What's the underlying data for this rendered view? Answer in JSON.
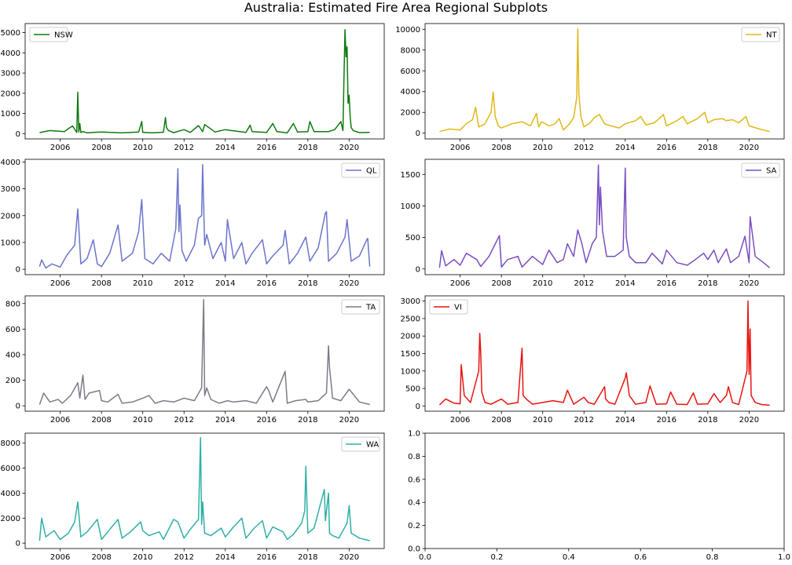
{
  "title": "Australia: Estimated Fire Area Regional Subplots",
  "chart_data": [
    {
      "type": "line",
      "name": "NSW",
      "legend": "NSW",
      "legend_loc": "upper left",
      "color": "#0f7a0f",
      "xlim": [
        2004.3,
        2021.7
      ],
      "ylim": [
        -260,
        5450
      ],
      "yticks": [
        0,
        1000,
        2000,
        3000,
        4000,
        5000
      ],
      "xticks": [
        2006,
        2008,
        2010,
        2012,
        2014,
        2016,
        2018,
        2020
      ],
      "x": [
        2005.0,
        2005.5,
        2006.2,
        2006.4,
        2006.6,
        2006.8,
        2006.85,
        2006.9,
        2006.95,
        2007.0,
        2007.1,
        2007.3,
        2008.0,
        2009.0,
        2009.8,
        2009.95,
        2010.0,
        2010.5,
        2011.0,
        2011.1,
        2011.15,
        2011.25,
        2011.5,
        2012.0,
        2012.3,
        2012.7,
        2012.9,
        2013.0,
        2013.5,
        2014.0,
        2014.3,
        2015.0,
        2015.2,
        2015.3,
        2016.0,
        2016.3,
        2016.5,
        2017.0,
        2017.3,
        2017.5,
        2018.0,
        2018.1,
        2018.3,
        2019.0,
        2019.3,
        2019.6,
        2019.7,
        2019.75,
        2019.8,
        2019.85,
        2019.9,
        2019.95,
        2020.0,
        2020.05,
        2020.1,
        2020.2,
        2020.5,
        2021.0
      ],
      "y": [
        50,
        150,
        100,
        250,
        380,
        60,
        2050,
        80,
        500,
        60,
        100,
        40,
        80,
        40,
        80,
        600,
        60,
        40,
        70,
        800,
        300,
        150,
        50,
        200,
        60,
        400,
        100,
        450,
        80,
        200,
        150,
        60,
        420,
        100,
        60,
        500,
        100,
        40,
        500,
        80,
        100,
        600,
        100,
        100,
        200,
        600,
        150,
        2800,
        5150,
        3800,
        4300,
        1500,
        1900,
        800,
        300,
        150,
        50,
        60
      ]
    },
    {
      "type": "line",
      "name": "NT",
      "legend": "NT",
      "legend_loc": "upper right",
      "color": "#e0b818",
      "xlim": [
        2004.3,
        2021.7
      ],
      "ylim": [
        -550,
        10550
      ],
      "yticks": [
        0,
        2000,
        4000,
        6000,
        8000,
        10000
      ],
      "xticks": [
        2006,
        2008,
        2010,
        2012,
        2014,
        2016,
        2018,
        2020
      ],
      "x": [
        2005.0,
        2005.5,
        2006.0,
        2006.3,
        2006.6,
        2006.75,
        2006.9,
        2007.2,
        2007.5,
        2007.6,
        2007.7,
        2007.85,
        2008.0,
        2008.5,
        2009.0,
        2009.4,
        2009.7,
        2009.8,
        2009.95,
        2010.3,
        2010.6,
        2010.8,
        2011.0,
        2011.3,
        2011.5,
        2011.65,
        2011.7,
        2011.75,
        2011.85,
        2012.0,
        2012.3,
        2012.5,
        2012.75,
        2013.0,
        2013.3,
        2013.7,
        2014.0,
        2014.5,
        2014.75,
        2015.0,
        2015.4,
        2015.7,
        2015.85,
        2016.0,
        2016.5,
        2016.8,
        2017.0,
        2017.5,
        2017.85,
        2018.0,
        2018.3,
        2018.7,
        2018.9,
        2019.2,
        2019.5,
        2019.85,
        2020.0,
        2020.5,
        2021.0
      ],
      "y": [
        150,
        400,
        300,
        900,
        1300,
        2500,
        600,
        900,
        2000,
        3950,
        1600,
        700,
        500,
        900,
        1100,
        700,
        1900,
        600,
        1100,
        700,
        900,
        1400,
        300,
        900,
        1500,
        3400,
        10050,
        3800,
        1600,
        600,
        1000,
        1500,
        1800,
        900,
        700,
        500,
        900,
        1200,
        1600,
        800,
        1000,
        1500,
        1800,
        700,
        1200,
        1600,
        900,
        1400,
        2000,
        1000,
        1300,
        1400,
        1200,
        1300,
        1000,
        1600,
        700,
        400,
        150
      ]
    },
    {
      "type": "line",
      "name": "QL",
      "legend": "QL",
      "legend_loc": "upper right",
      "color": "#6c74cc",
      "xlim": [
        2004.3,
        2021.7
      ],
      "ylim": [
        -200,
        4100
      ],
      "yticks": [
        0,
        1000,
        2000,
        3000,
        4000
      ],
      "xticks": [
        2006,
        2008,
        2010,
        2012,
        2014,
        2016,
        2018,
        2020
      ],
      "x": [
        2005.0,
        2005.1,
        2005.3,
        2005.6,
        2006.0,
        2006.3,
        2006.7,
        2006.85,
        2007.0,
        2007.3,
        2007.6,
        2007.8,
        2008.0,
        2008.4,
        2008.8,
        2009.0,
        2009.5,
        2009.8,
        2009.95,
        2010.1,
        2010.5,
        2010.9,
        2011.3,
        2011.6,
        2011.7,
        2011.75,
        2011.8,
        2011.9,
        2012.1,
        2012.5,
        2012.7,
        2012.85,
        2012.9,
        2013.0,
        2013.1,
        2013.4,
        2013.8,
        2014.0,
        2014.1,
        2014.4,
        2014.8,
        2015.0,
        2015.3,
        2015.8,
        2016.0,
        2016.3,
        2016.8,
        2016.9,
        2017.1,
        2017.5,
        2017.9,
        2018.1,
        2018.5,
        2018.85,
        2018.9,
        2019.0,
        2019.4,
        2019.8,
        2019.9,
        2020.1,
        2020.5,
        2020.85,
        2020.9,
        2021.0
      ],
      "y": [
        100,
        350,
        50,
        200,
        80,
        500,
        900,
        2250,
        200,
        400,
        1100,
        200,
        100,
        600,
        1650,
        300,
        600,
        1400,
        2600,
        400,
        200,
        600,
        300,
        1500,
        3750,
        1400,
        2400,
        700,
        300,
        900,
        1900,
        2000,
        3900,
        900,
        1300,
        400,
        1000,
        300,
        1850,
        400,
        1000,
        200,
        600,
        1100,
        200,
        500,
        900,
        1450,
        200,
        600,
        1200,
        300,
        800,
        2100,
        2150,
        300,
        600,
        1200,
        1850,
        300,
        500,
        1100,
        1150,
        100
      ]
    },
    {
      "type": "line",
      "name": "SA",
      "legend": "SA",
      "legend_loc": "upper right",
      "color": "#7a4ec2",
      "xlim": [
        2004.3,
        2021.7
      ],
      "ylim": [
        -90,
        1740
      ],
      "yticks": [
        0,
        500,
        1000,
        1500
      ],
      "xticks": [
        2006,
        2008,
        2010,
        2012,
        2014,
        2016,
        2018,
        2020
      ],
      "x": [
        2005.0,
        2005.1,
        2005.3,
        2005.7,
        2006.0,
        2006.3,
        2006.8,
        2007.0,
        2007.4,
        2007.9,
        2008.0,
        2008.3,
        2008.8,
        2009.0,
        2009.5,
        2010.0,
        2010.3,
        2010.7,
        2011.0,
        2011.2,
        2011.5,
        2011.7,
        2011.9,
        2012.1,
        2012.4,
        2012.6,
        2012.7,
        2012.75,
        2012.8,
        2012.9,
        2013.1,
        2013.5,
        2013.9,
        2014.0,
        2014.05,
        2014.2,
        2014.5,
        2015.0,
        2015.3,
        2015.8,
        2016.0,
        2016.5,
        2017.0,
        2017.4,
        2017.8,
        2018.0,
        2018.3,
        2018.5,
        2018.9,
        2019.1,
        2019.5,
        2019.8,
        2020.0,
        2020.05,
        2020.3,
        2020.7,
        2021.0
      ],
      "y": [
        20,
        290,
        50,
        150,
        60,
        250,
        150,
        40,
        200,
        530,
        30,
        150,
        200,
        30,
        200,
        70,
        300,
        100,
        150,
        400,
        200,
        620,
        400,
        100,
        400,
        500,
        1650,
        700,
        1300,
        600,
        200,
        200,
        300,
        1600,
        500,
        200,
        100,
        100,
        250,
        80,
        300,
        100,
        60,
        150,
        250,
        150,
        300,
        100,
        320,
        100,
        200,
        520,
        100,
        830,
        200,
        100,
        20
      ]
    },
    {
      "type": "line",
      "name": "TA",
      "legend": "TA",
      "legend_loc": "upper right",
      "color": "#7c7c88",
      "xlim": [
        2004.3,
        2021.7
      ],
      "ylim": [
        -42,
        860
      ],
      "yticks": [
        0,
        200,
        400,
        600,
        800
      ],
      "xticks": [
        2006,
        2008,
        2010,
        2012,
        2014,
        2016,
        2018,
        2020
      ],
      "x": [
        2005.0,
        2005.2,
        2005.5,
        2005.9,
        2006.1,
        2006.5,
        2006.85,
        2006.95,
        2007.1,
        2007.2,
        2007.4,
        2007.9,
        2008.0,
        2008.3,
        2008.8,
        2009.0,
        2009.5,
        2010.0,
        2010.3,
        2010.6,
        2011.0,
        2011.5,
        2012.0,
        2012.5,
        2012.85,
        2012.95,
        2013.0,
        2013.1,
        2013.3,
        2013.7,
        2014.1,
        2014.4,
        2015.0,
        2015.5,
        2016.0,
        2016.1,
        2016.3,
        2016.9,
        2017.0,
        2017.4,
        2017.9,
        2018.0,
        2018.5,
        2018.9,
        2019.0,
        2019.05,
        2019.2,
        2019.6,
        2020.0,
        2020.5,
        2021.0
      ],
      "y": [
        10,
        100,
        30,
        50,
        20,
        80,
        180,
        60,
        240,
        50,
        100,
        120,
        40,
        30,
        90,
        20,
        30,
        60,
        80,
        20,
        40,
        30,
        60,
        40,
        140,
        830,
        80,
        140,
        50,
        20,
        40,
        30,
        40,
        20,
        150,
        120,
        30,
        270,
        20,
        40,
        50,
        30,
        40,
        100,
        470,
        300,
        60,
        40,
        130,
        30,
        10
      ]
    },
    {
      "type": "line",
      "name": "VI",
      "legend": "VI",
      "legend_loc": "upper left",
      "color": "#e8140f",
      "xlim": [
        2004.3,
        2021.7
      ],
      "ylim": [
        -150,
        3150
      ],
      "yticks": [
        0,
        500,
        1000,
        1500,
        2000,
        2500,
        3000
      ],
      "xticks": [
        2006,
        2008,
        2010,
        2012,
        2014,
        2016,
        2018,
        2020
      ],
      "x": [
        2005.0,
        2005.3,
        2005.7,
        2006.0,
        2006.05,
        2006.2,
        2006.5,
        2006.9,
        2006.95,
        2007.0,
        2007.05,
        2007.2,
        2007.5,
        2008.0,
        2008.3,
        2008.8,
        2009.0,
        2009.05,
        2009.2,
        2009.5,
        2010.0,
        2010.5,
        2011.0,
        2011.2,
        2011.5,
        2012.0,
        2012.2,
        2012.5,
        2013.0,
        2013.05,
        2013.2,
        2013.5,
        2014.0,
        2014.05,
        2014.2,
        2014.5,
        2015.0,
        2015.2,
        2015.5,
        2016.0,
        2016.2,
        2016.5,
        2017.0,
        2017.3,
        2017.5,
        2018.0,
        2018.3,
        2018.6,
        2018.9,
        2019.0,
        2019.2,
        2019.5,
        2019.9,
        2019.95,
        2020.0,
        2020.05,
        2020.1,
        2020.3,
        2020.6,
        2021.0
      ],
      "y": [
        30,
        200,
        80,
        60,
        1180,
        300,
        100,
        1000,
        2080,
        1500,
        400,
        100,
        50,
        200,
        50,
        100,
        1650,
        300,
        200,
        50,
        100,
        150,
        100,
        450,
        50,
        250,
        100,
        50,
        550,
        200,
        100,
        50,
        800,
        950,
        300,
        50,
        100,
        570,
        50,
        60,
        400,
        50,
        40,
        370,
        50,
        60,
        350,
        100,
        300,
        550,
        100,
        40,
        1000,
        3000,
        900,
        2200,
        300,
        100,
        40,
        20
      ]
    },
    {
      "type": "line",
      "name": "WA",
      "legend": "WA",
      "legend_loc": "upper right",
      "color": "#2fb0a6",
      "xlim": [
        2004.3,
        2021.7
      ],
      "ylim": [
        -430,
        8800
      ],
      "yticks": [
        0,
        2000,
        4000,
        6000,
        8000
      ],
      "xticks": [
        2006,
        2008,
        2010,
        2012,
        2014,
        2016,
        2018,
        2020
      ],
      "x": [
        2005.0,
        2005.1,
        2005.3,
        2005.7,
        2006.0,
        2006.4,
        2006.7,
        2006.85,
        2007.0,
        2007.3,
        2007.8,
        2008.0,
        2008.3,
        2008.8,
        2009.0,
        2009.4,
        2009.9,
        2010.0,
        2010.3,
        2010.8,
        2011.0,
        2011.5,
        2011.7,
        2012.0,
        2012.3,
        2012.7,
        2012.8,
        2012.85,
        2012.9,
        2013.0,
        2013.3,
        2013.8,
        2014.0,
        2014.4,
        2014.8,
        2015.0,
        2015.4,
        2015.8,
        2016.0,
        2016.3,
        2016.8,
        2017.0,
        2017.3,
        2017.7,
        2017.85,
        2017.9,
        2018.0,
        2018.3,
        2018.8,
        2018.85,
        2019.0,
        2019.05,
        2019.2,
        2019.5,
        2019.9,
        2020.0,
        2020.1,
        2020.5,
        2021.0
      ],
      "y": [
        200,
        2000,
        500,
        1000,
        300,
        800,
        1700,
        3300,
        500,
        900,
        1900,
        300,
        900,
        1900,
        400,
        900,
        1700,
        1000,
        600,
        900,
        300,
        1900,
        1700,
        400,
        1100,
        1900,
        8450,
        1500,
        3300,
        800,
        600,
        1200,
        500,
        1300,
        2000,
        400,
        1200,
        1800,
        400,
        1300,
        900,
        300,
        700,
        1600,
        2600,
        6150,
        800,
        1200,
        4300,
        1800,
        4000,
        800,
        600,
        400,
        1600,
        3000,
        800,
        400,
        200
      ]
    },
    {
      "type": "line",
      "name": "empty",
      "series": [],
      "xlim": [
        0.0,
        1.0
      ],
      "ylim": [
        0.0,
        1.0
      ],
      "xtick_labels": [
        "0.0",
        "0.2",
        "0.4",
        "0.6",
        "0.8",
        "1.0"
      ],
      "ytick_labels": [
        "0.0",
        "0.2",
        "0.4",
        "0.6",
        "0.8",
        "1.0"
      ]
    }
  ]
}
